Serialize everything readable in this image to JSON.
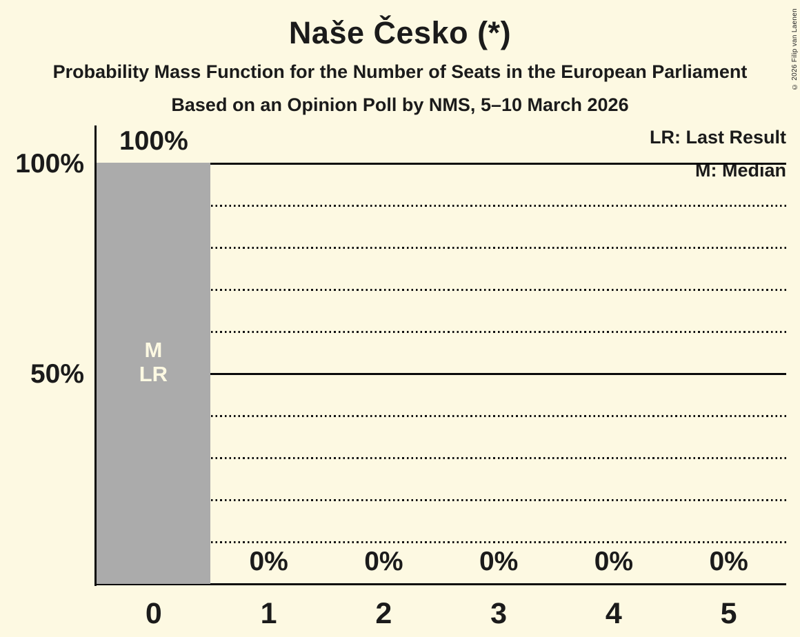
{
  "page": {
    "title": "Naše Česko (*)",
    "subtitle1": "Probability Mass Function for the Number of Seats in the European Parliament",
    "subtitle2": "Based on an Opinion Poll by NMS, 5–10 March 2026",
    "copyright": "© 2026 Filip van Laenen"
  },
  "legend": {
    "last_result": "LR: Last Result",
    "median": "M: Median"
  },
  "y_axis": {
    "label_100": "100%",
    "label_50": "50%"
  },
  "chart_data": {
    "type": "bar",
    "title": "Naše Česko (*)",
    "subtitle": "Probability Mass Function for the Number of Seats in the European Parliament",
    "source_note": "Based on an Opinion Poll by NMS, 5–10 March 2026",
    "categories": [
      "0",
      "1",
      "2",
      "3",
      "4",
      "5"
    ],
    "values": [
      100,
      0,
      0,
      0,
      0,
      0
    ],
    "data_labels": [
      "100%",
      "0%",
      "0%",
      "0%",
      "0%",
      "0%"
    ],
    "ylim": [
      0,
      100
    ],
    "y_tick_labels_shown": [
      "100%",
      "50%"
    ],
    "y_gridlines_solid": [
      100,
      50
    ],
    "y_gridlines_dotted": [
      90,
      80,
      70,
      60,
      40,
      30,
      20,
      10
    ],
    "legend_position": "top-right",
    "annotations": [
      {
        "category_index": 0,
        "lines": [
          "M",
          "LR"
        ],
        "anchor_percent": 50
      }
    ]
  },
  "colors": {
    "background": "#FDF9E2",
    "bar": "#ABABAB",
    "text": "#1B1B1B",
    "line": "#0A0A0A",
    "annotation_text": "#FDF9E2"
  }
}
